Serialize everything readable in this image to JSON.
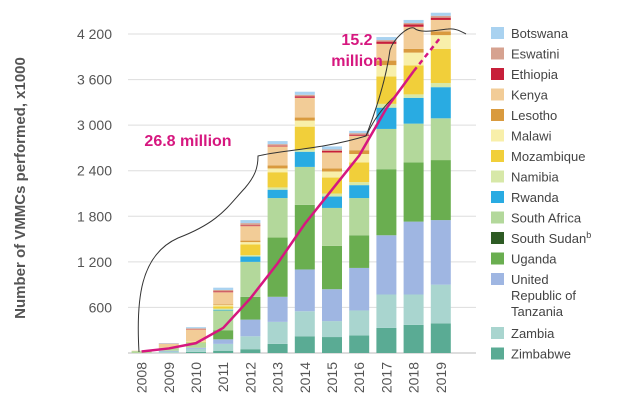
{
  "chart_data": {
    "type": "bar",
    "stacked": true,
    "ylabel": "Number of VMMCs performed, x1000",
    "ylim": [
      0,
      4300
    ],
    "yticks": [
      600,
      1200,
      1800,
      2400,
      3000,
      3600,
      4200
    ],
    "ytick_labels": [
      "600",
      "1 200",
      "1 800",
      "2 400",
      "3 000",
      "3 600",
      "4 200"
    ],
    "grid": true,
    "legend_position": "right",
    "categories": [
      "2008",
      "2009",
      "2010",
      "2011",
      "2012",
      "2013",
      "2014",
      "2015",
      "2016",
      "2017",
      "2018",
      "2019"
    ],
    "series": [
      {
        "name": "Zimbabwe",
        "color": "#5aab94",
        "values": [
          0,
          0,
          15,
          30,
          50,
          120,
          220,
          210,
          230,
          330,
          370,
          390
        ]
      },
      {
        "name": "Zambia",
        "color": "#a9d5cf",
        "values": [
          0,
          20,
          40,
          90,
          170,
          290,
          330,
          210,
          330,
          440,
          400,
          510
        ]
      },
      {
        "name": "United Republic of Tanzania",
        "color": "#9fb6e2",
        "values": [
          0,
          10,
          15,
          60,
          220,
          330,
          550,
          420,
          560,
          780,
          960,
          850
        ]
      },
      {
        "name": "Uganda",
        "color": "#6aae50",
        "values": [
          0,
          0,
          0,
          120,
          300,
          780,
          850,
          570,
          430,
          870,
          780,
          790
        ]
      },
      {
        "name": "South Sudan",
        "name_sup": "b",
        "color": "#2e5b24",
        "values": [
          0,
          0,
          0,
          0,
          0,
          0,
          0,
          0,
          0,
          0,
          0,
          0
        ]
      },
      {
        "name": "South Africa",
        "color": "#b3d89b",
        "values": [
          25,
          40,
          70,
          260,
          460,
          520,
          500,
          500,
          490,
          530,
          510,
          550
        ]
      },
      {
        "name": "Rwanda",
        "color": "#29abe2",
        "values": [
          0,
          0,
          0,
          10,
          70,
          110,
          200,
          150,
          170,
          280,
          340,
          410
        ]
      },
      {
        "name": "Namibia",
        "color": "#d7e8a8",
        "values": [
          0,
          0,
          0,
          15,
          20,
          30,
          30,
          40,
          40,
          50,
          45,
          55
        ]
      },
      {
        "name": "Mozambique",
        "color": "#f1cf3a",
        "values": [
          0,
          0,
          5,
          30,
          140,
          200,
          300,
          210,
          260,
          360,
          380,
          450
        ]
      },
      {
        "name": "Malawi",
        "color": "#f8efaa",
        "values": [
          0,
          0,
          5,
          15,
          30,
          50,
          80,
          80,
          110,
          150,
          170,
          180
        ]
      },
      {
        "name": "Lesotho",
        "color": "#d99a3e",
        "values": [
          0,
          0,
          0,
          10,
          20,
          40,
          40,
          40,
          50,
          60,
          50,
          50
        ]
      },
      {
        "name": "Kenya",
        "color": "#f2cc97",
        "values": [
          5,
          50,
          160,
          160,
          190,
          250,
          260,
          210,
          190,
          220,
          290,
          150
        ]
      },
      {
        "name": "Ethiopia",
        "color": "#c71f3a",
        "values": [
          0,
          0,
          5,
          10,
          10,
          10,
          20,
          20,
          15,
          30,
          30,
          30
        ]
      },
      {
        "name": "Eswatini",
        "color": "#d6a290",
        "values": [
          0,
          5,
          10,
          20,
          30,
          20,
          20,
          20,
          20,
          20,
          20,
          25
        ]
      },
      {
        "name": "Botswana",
        "color": "#a9d2f0",
        "values": [
          0,
          5,
          15,
          30,
          40,
          40,
          40,
          40,
          30,
          40,
          40,
          40
        ]
      }
    ],
    "cumulative_line": {
      "color": "#d6177f",
      "values": [
        20,
        60,
        130,
        330,
        720,
        1180,
        1700,
        2150,
        2600,
        3220,
        3710,
        4160
      ],
      "dashed_from_index": 10
    },
    "annotations": [
      {
        "text": "26.8 million",
        "x_from": "2008",
        "x_to": "2016"
      },
      {
        "text": "15.2",
        "text2": "million",
        "x_from": "2016",
        "x_to": "2019"
      }
    ]
  }
}
